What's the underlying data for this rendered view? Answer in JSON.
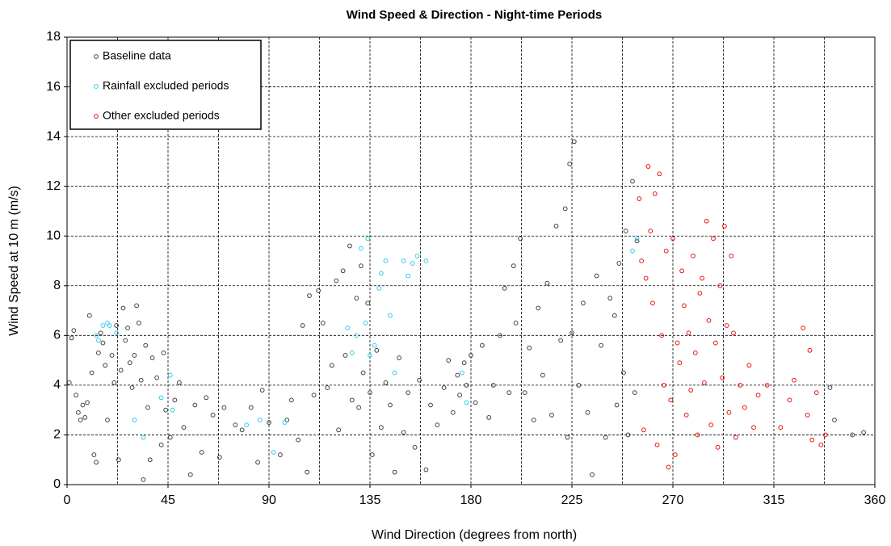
{
  "chart_data": {
    "type": "scatter",
    "title": "Wind Speed & Direction - Night-time Periods",
    "x_label": "Wind Direction (degrees from north)",
    "y_label": "Wind Speed at 10 m (m/s)",
    "xlim": [
      0,
      360
    ],
    "ylim": [
      0,
      18
    ],
    "xticks": [
      0,
      45,
      90,
      135,
      180,
      225,
      270,
      315,
      360
    ],
    "xminor": [
      22.5,
      67.5,
      112.5,
      157.5,
      202.5,
      247.5,
      292.5,
      337.5
    ],
    "yticks": [
      0,
      2,
      4,
      6,
      8,
      10,
      12,
      14,
      16,
      18
    ],
    "grid": true,
    "legend": "upper left",
    "series": [
      {
        "name": "Baseline data",
        "color": "#404040",
        "x": [
          1,
          2,
          3,
          4,
          5,
          6,
          7,
          8,
          9,
          10,
          11,
          12,
          13,
          14,
          15,
          16,
          17,
          18,
          20,
          21,
          22,
          23,
          24,
          25,
          26,
          27,
          28,
          29,
          30,
          31,
          32,
          33,
          34,
          35,
          36,
          37,
          38,
          40,
          42,
          43,
          44,
          46,
          48,
          50,
          52,
          55,
          57,
          60,
          62,
          65,
          68,
          70,
          75,
          78,
          82,
          85,
          87,
          90,
          95,
          98,
          100,
          103,
          105,
          107,
          108,
          110,
          112,
          114,
          116,
          118,
          120,
          121,
          123,
          124,
          126,
          127,
          129,
          130,
          131,
          132,
          134,
          135,
          136,
          138,
          140,
          142,
          144,
          146,
          148,
          150,
          152,
          155,
          157,
          160,
          162,
          165,
          168,
          170,
          172,
          174,
          175,
          177,
          178,
          180,
          182,
          185,
          188,
          190,
          193,
          195,
          197,
          199,
          200,
          202,
          204,
          206,
          208,
          210,
          212,
          214,
          216,
          218,
          220,
          222,
          223,
          224,
          225,
          226,
          228,
          230,
          232,
          234,
          236,
          238,
          240,
          242,
          244,
          245,
          246,
          248,
          249,
          250,
          252,
          253,
          254,
          340,
          342,
          350,
          355
        ],
        "values": [
          4.1,
          5.9,
          6.2,
          3.6,
          2.9,
          2.6,
          3.2,
          2.7,
          3.3,
          6.8,
          4.5,
          1.2,
          0.9,
          5.3,
          6.1,
          5.7,
          4.8,
          2.6,
          5.2,
          4.1,
          6.4,
          1.0,
          4.6,
          7.1,
          5.8,
          6.3,
          4.9,
          3.9,
          5.2,
          7.2,
          6.5,
          4.2,
          0.2,
          5.6,
          3.1,
          1.0,
          5.1,
          4.3,
          1.6,
          5.3,
          3.0,
          1.9,
          3.4,
          4.1,
          2.3,
          0.4,
          3.2,
          1.3,
          3.5,
          2.8,
          1.1,
          3.1,
          2.4,
          2.2,
          3.1,
          0.9,
          3.8,
          2.5,
          1.2,
          2.6,
          3.4,
          1.8,
          6.4,
          0.5,
          7.6,
          3.6,
          7.8,
          6.5,
          3.9,
          4.8,
          8.2,
          2.2,
          8.6,
          5.2,
          9.6,
          3.4,
          7.5,
          3.1,
          8.8,
          4.5,
          7.3,
          3.7,
          1.2,
          5.4,
          2.3,
          4.1,
          3.2,
          0.5,
          5.1,
          2.1,
          3.7,
          1.5,
          4.2,
          0.6,
          3.2,
          2.4,
          3.9,
          5.0,
          2.9,
          4.4,
          3.6,
          4.9,
          4.0,
          5.2,
          3.3,
          5.6,
          2.7,
          4.0,
          6.0,
          7.9,
          3.7,
          8.8,
          6.5,
          9.9,
          3.7,
          5.5,
          2.6,
          7.1,
          4.4,
          8.1,
          2.8,
          10.4,
          5.8,
          11.1,
          1.9,
          12.9,
          6.1,
          13.8,
          4.0,
          7.3,
          2.9,
          0.4,
          8.4,
          5.6,
          1.9,
          7.5,
          6.8,
          3.2,
          8.9,
          4.5,
          10.2,
          2.0,
          12.2,
          3.7,
          9.8,
          3.9,
          2.6,
          2.0,
          2.1
        ]
      },
      {
        "name": "Rainfall excluded periods",
        "color": "#33ccee",
        "x": [
          13,
          14,
          16,
          18,
          19,
          22,
          30,
          34,
          42,
          46,
          47,
          80,
          86,
          92,
          97,
          125,
          127,
          129,
          131,
          133,
          134,
          135,
          137,
          139,
          140,
          142,
          144,
          146,
          150,
          152,
          154,
          156,
          160,
          176,
          178,
          252,
          254
        ],
        "values": [
          6.0,
          5.8,
          6.4,
          6.5,
          6.4,
          6.1,
          2.6,
          1.9,
          3.5,
          4.4,
          3.0,
          2.4,
          2.6,
          1.3,
          2.5,
          6.3,
          5.3,
          6.0,
          9.5,
          6.5,
          9.9,
          5.2,
          5.6,
          7.9,
          8.5,
          9.0,
          6.8,
          4.5,
          9.0,
          8.4,
          8.9,
          9.2,
          9.0,
          4.5,
          3.3,
          9.4,
          9.9
        ]
      },
      {
        "name": "Other excluded periods",
        "color": "#ee1111",
        "x": [
          255,
          256,
          257,
          258,
          259,
          260,
          261,
          262,
          263,
          264,
          265,
          266,
          267,
          268,
          269,
          270,
          271,
          272,
          273,
          274,
          275,
          276,
          277,
          278,
          279,
          280,
          281,
          282,
          283,
          284,
          285,
          286,
          287,
          288,
          289,
          290,
          291,
          292,
          293,
          294,
          295,
          296,
          297,
          298,
          300,
          302,
          304,
          306,
          308,
          312,
          318,
          322,
          324,
          328,
          330,
          331,
          332,
          334,
          336,
          338
        ],
        "values": [
          11.5,
          9.0,
          2.2,
          8.3,
          12.8,
          10.2,
          7.3,
          11.7,
          1.6,
          12.5,
          6.0,
          4.0,
          9.4,
          0.7,
          3.4,
          9.9,
          1.2,
          5.7,
          4.9,
          8.6,
          7.2,
          2.8,
          6.1,
          3.8,
          9.2,
          5.3,
          2.0,
          7.7,
          8.3,
          4.1,
          10.6,
          6.6,
          2.4,
          9.9,
          5.7,
          1.5,
          8.0,
          4.3,
          10.4,
          6.4,
          2.9,
          9.2,
          6.1,
          1.9,
          4.0,
          3.1,
          4.8,
          2.3,
          3.6,
          4.0,
          2.3,
          3.4,
          4.2,
          6.3,
          2.8,
          5.4,
          1.8,
          3.7,
          1.6,
          2.0
        ]
      }
    ]
  }
}
